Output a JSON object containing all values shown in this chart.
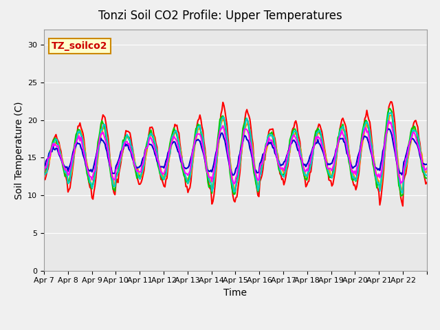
{
  "title": "Tonzi Soil CO2 Profile: Upper Temperatures",
  "xlabel": "Time",
  "ylabel": "Soil Temperature (C)",
  "ylim": [
    0,
    32
  ],
  "yticks": [
    0,
    5,
    10,
    15,
    20,
    25,
    30
  ],
  "background_color": "#f0f0f0",
  "plot_bg_color": "#e8e8e8",
  "annotation_text": "TZ_soilco2",
  "annotation_box_color": "#ffffcc",
  "annotation_border_color": "#cc8800",
  "series": {
    "Open -2cm": {
      "color": "#ff0000",
      "lw": 1.5
    },
    "Tree -2cm": {
      "color": "#ff9900",
      "lw": 1.5
    },
    "Open -4cm": {
      "color": "#00cc00",
      "lw": 1.5
    },
    "Tree -4cm": {
      "color": "#0000cc",
      "lw": 1.5
    },
    "Tree2 -2cm": {
      "color": "#00cccc",
      "lw": 1.5
    },
    "Tree2 -4cm": {
      "color": "#ff00ff",
      "lw": 1.5
    }
  },
  "x_tick_labels": [
    "Apr 7",
    "Apr 8",
    "Apr 9",
    "Apr 10",
    "Apr 11",
    "Apr 12",
    "Apr 13",
    "Apr 14",
    "Apr 15",
    "Apr 16",
    "Apr 17",
    "Apr 18",
    "Apr 19",
    "Apr 20",
    "Apr 21",
    "Apr 22"
  ],
  "n_days": 16,
  "pts_per_day": 24
}
